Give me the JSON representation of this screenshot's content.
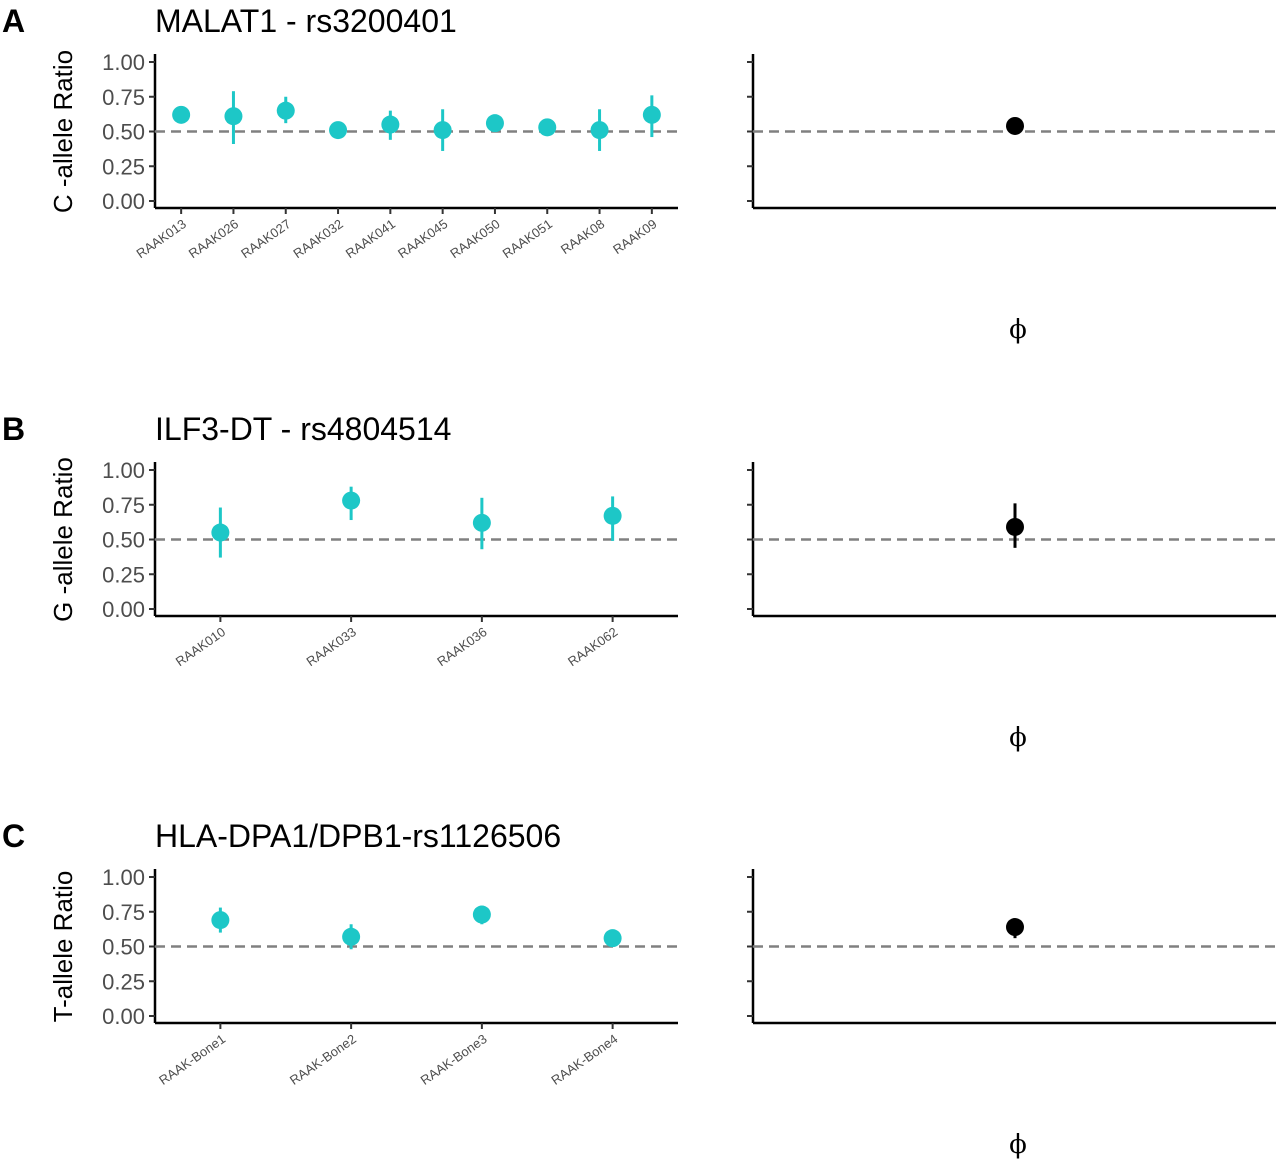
{
  "colors": {
    "sample_point": "#1dc7c7",
    "pooled_point": "#000000",
    "reference_line": "#808080"
  },
  "chart_data": [
    {
      "type": "scatter",
      "panel_letter": "A",
      "title": "MALAT1 - rs3200401",
      "ylabel": "C -allele Ratio",
      "xlabel": "",
      "ylim": [
        0,
        1
      ],
      "yticks": [
        "0.00",
        "0.25",
        "0.50",
        "0.75",
        "1.00"
      ],
      "reference_y": 0.5,
      "grid": false,
      "categories": [
        "RAAK013",
        "RAAK026",
        "RAAK027",
        "RAAK032",
        "RAAK041",
        "RAAK045",
        "RAAK050",
        "RAAK051",
        "RAAK08",
        "RAAK09"
      ],
      "values": [
        0.62,
        0.61,
        0.65,
        0.51,
        0.55,
        0.51,
        0.56,
        0.53,
        0.51,
        0.62
      ],
      "lower": [
        0.6,
        0.41,
        0.56,
        0.5,
        0.44,
        0.36,
        0.55,
        0.52,
        0.36,
        0.46
      ],
      "upper": [
        0.64,
        0.79,
        0.75,
        0.52,
        0.65,
        0.66,
        0.57,
        0.54,
        0.66,
        0.76
      ],
      "pooled": {
        "label": "ϕ",
        "value": 0.54,
        "lower": 0.53,
        "upper": 0.55
      }
    },
    {
      "type": "scatter",
      "panel_letter": "B",
      "title": "ILF3-DT - rs4804514",
      "ylabel": "G -allele Ratio",
      "xlabel": "",
      "ylim": [
        0,
        1
      ],
      "yticks": [
        "0.00",
        "0.25",
        "0.50",
        "0.75",
        "1.00"
      ],
      "reference_y": 0.5,
      "grid": false,
      "categories": [
        "RAAK010",
        "RAAK033",
        "RAAK036",
        "RAAK062"
      ],
      "values": [
        0.55,
        0.78,
        0.62,
        0.67
      ],
      "lower": [
        0.37,
        0.64,
        0.43,
        0.49
      ],
      "upper": [
        0.73,
        0.88,
        0.8,
        0.81
      ],
      "pooled": {
        "label": "ϕ",
        "value": 0.59,
        "lower": 0.44,
        "upper": 0.76
      }
    },
    {
      "type": "scatter",
      "panel_letter": "C",
      "title": "HLA-DPA1/DPB1-rs1126506",
      "ylabel": "T-allele Ratio",
      "xlabel": "",
      "ylim": [
        0,
        1
      ],
      "yticks": [
        "0.00",
        "0.25",
        "0.50",
        "0.75",
        "1.00"
      ],
      "reference_y": 0.5,
      "grid": false,
      "categories": [
        "RAAK-Bone1",
        "RAAK-Bone2",
        "RAAK-Bone3",
        "RAAK-Bone4"
      ],
      "values": [
        0.69,
        0.57,
        0.73,
        0.56
      ],
      "lower": [
        0.6,
        0.48,
        0.66,
        0.55
      ],
      "upper": [
        0.78,
        0.66,
        0.79,
        0.57
      ],
      "pooled": {
        "label": "ϕ",
        "value": 0.64,
        "lower": 0.56,
        "upper": 0.65
      }
    }
  ]
}
